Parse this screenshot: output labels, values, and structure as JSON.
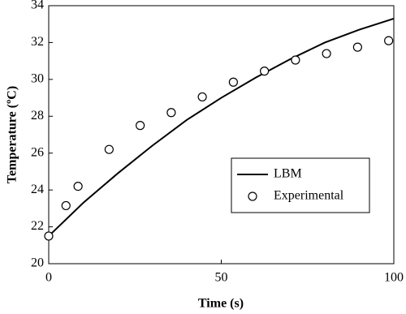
{
  "chart_data": {
    "type": "line-scatter",
    "xlabel": "Time (s)",
    "ylabel": "Temperature (ºC)",
    "xlim": [
      0,
      100
    ],
    "xticks": [
      0,
      50,
      100
    ],
    "ylim": [
      20,
      34
    ],
    "yticks": [
      20,
      22,
      24,
      26,
      28,
      30,
      32,
      34
    ],
    "grid": false,
    "legend": "lower-right",
    "series": [
      {
        "name": "LBM",
        "kind": "line",
        "color": "#000000",
        "x": [
          0,
          10,
          20,
          30,
          40,
          50,
          60,
          70,
          80,
          90,
          100
        ],
        "values": [
          21.5,
          23.3,
          24.9,
          26.4,
          27.8,
          29.0,
          30.1,
          31.1,
          32.0,
          32.7,
          33.3
        ]
      },
      {
        "name": "Experimental",
        "kind": "scatter",
        "color": "#000000",
        "x": [
          0,
          5,
          8.5,
          17.5,
          26.5,
          35.5,
          44.5,
          53.5,
          62.5,
          71.5,
          80.5,
          89.5,
          98.5
        ],
        "values": [
          21.5,
          23.15,
          24.2,
          26.2,
          27.5,
          28.2,
          29.05,
          29.85,
          30.45,
          31.05,
          31.4,
          31.75,
          32.1
        ]
      }
    ]
  }
}
